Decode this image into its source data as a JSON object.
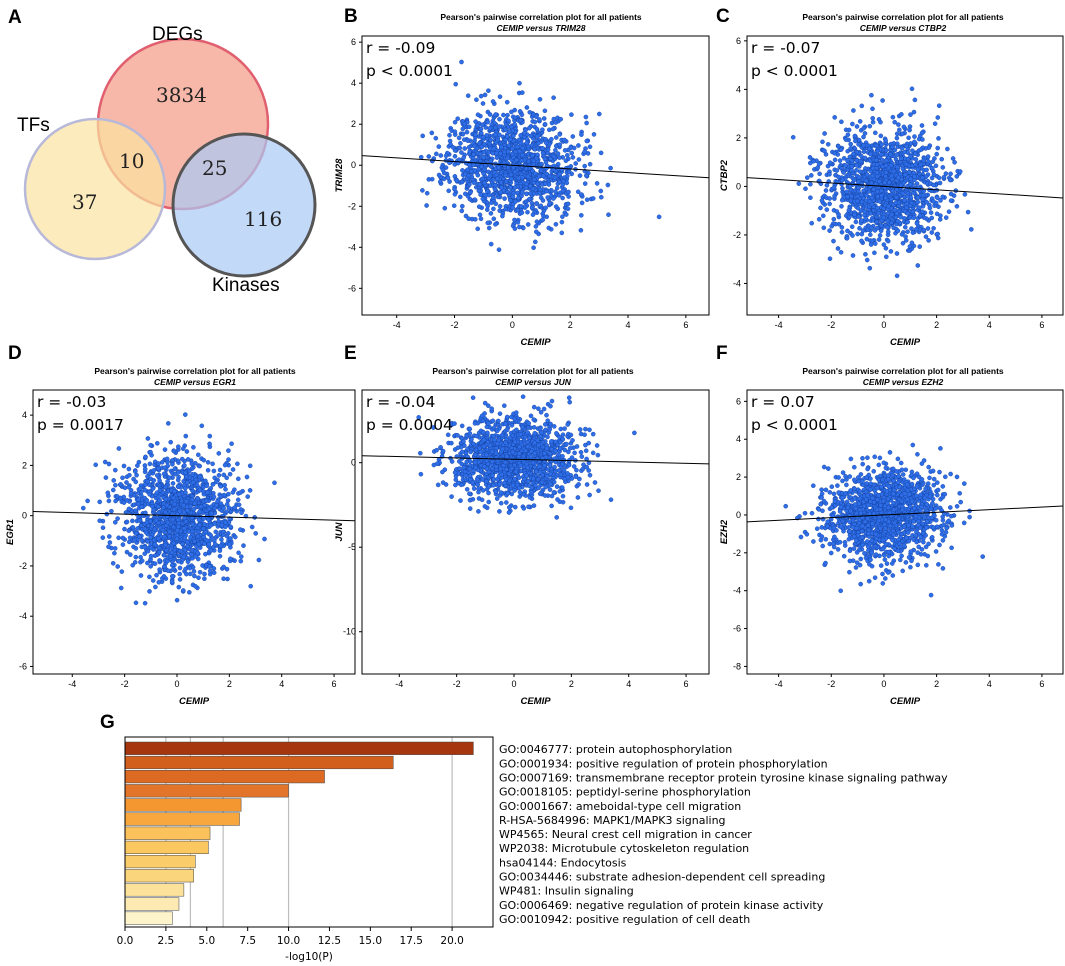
{
  "panel_labels": [
    "A",
    "B",
    "C",
    "D",
    "E",
    "F",
    "G"
  ],
  "venn": {
    "sets": [
      {
        "name": "DEGs",
        "color": "#f4a08c",
        "edge": "#e06070"
      },
      {
        "name": "TFs",
        "color": "#fbe3a0",
        "edge": "#b8b8d8"
      },
      {
        "name": "Kinases",
        "color": "#a9c9f5",
        "edge": "#555555"
      }
    ],
    "regions": [
      {
        "label": "DEGs only",
        "value": "3834"
      },
      {
        "label": "TFs & DEGs",
        "value": "10"
      },
      {
        "label": "DEGs & Kinases",
        "value": "25"
      },
      {
        "label": "TFs only",
        "value": "37"
      },
      {
        "label": "Kinases only",
        "value": "116"
      }
    ]
  },
  "chart_data": [
    {
      "type": "scatter",
      "panel": "B",
      "title": "Pearson's pairwise correlation plot for all patients",
      "subtitle": "CEMIP versus TRIM28",
      "xlabel": "CEMIP",
      "ylabel": "TRIM28",
      "stat_r": "r = -0.09",
      "stat_p": "p < 0.0001",
      "xlim": [
        -5.2,
        6.8
      ],
      "ylim": [
        -7.3,
        6.3
      ],
      "xticks": [
        -4,
        -2,
        0,
        2,
        4,
        6
      ],
      "yticks": [
        -6,
        -4,
        -2,
        0,
        2,
        4,
        6
      ],
      "slope": -0.09,
      "intercept": 0.0,
      "cloud_sx": 1.1,
      "cloud_sy": 1.3,
      "seed": 11
    },
    {
      "type": "scatter",
      "panel": "C",
      "title": "Pearson's pairwise correlation plot for all patients",
      "subtitle": "CEMIP versus CTBP2",
      "xlabel": "CEMIP",
      "ylabel": "CTBP2",
      "stat_r": "r = -0.07",
      "stat_p": "p < 0.0001",
      "xlim": [
        -5.2,
        6.8
      ],
      "ylim": [
        -5.3,
        6.2
      ],
      "xticks": [
        -4,
        -2,
        0,
        2,
        4,
        6
      ],
      "yticks": [
        -4,
        -2,
        0,
        2,
        4,
        6
      ],
      "slope": -0.07,
      "intercept": 0.0,
      "cloud_sx": 1.1,
      "cloud_sy": 1.15,
      "seed": 23
    },
    {
      "type": "scatter",
      "panel": "D",
      "title": "Pearson's pairwise correlation plot for all patients",
      "subtitle": "CEMIP versus EGR1",
      "xlabel": "CEMIP",
      "ylabel": "EGR1",
      "stat_r": "r = -0.03",
      "stat_p": "p = 0.0017",
      "xlim": [
        -5.5,
        6.8
      ],
      "ylim": [
        -6.3,
        5.0
      ],
      "xticks": [
        -4,
        -2,
        0,
        2,
        4,
        6
      ],
      "yticks": [
        -6,
        -4,
        -2,
        0,
        2,
        4
      ],
      "slope": -0.03,
      "intercept": 0.0,
      "cloud_sx": 1.1,
      "cloud_sy": 1.2,
      "seed": 37
    },
    {
      "type": "scatter",
      "panel": "E",
      "title": "Pearson's pairwise correlation plot for all patients",
      "subtitle": "CEMIP versus JUN",
      "xlabel": "CEMIP",
      "ylabel": "JUN",
      "stat_r": "r = -0.04",
      "stat_p": "p = 0.0004",
      "xlim": [
        -5.3,
        6.8
      ],
      "ylim": [
        -12.5,
        4.3
      ],
      "xticks": [
        -4,
        -2,
        0,
        2,
        4,
        6
      ],
      "yticks": [
        -10,
        -5,
        0
      ],
      "slope": -0.04,
      "intercept": 0.2,
      "cloud_sx": 1.1,
      "cloud_sy": 1.2,
      "seed": 51
    },
    {
      "type": "scatter",
      "panel": "F",
      "title": "Pearson's pairwise correlation plot for all patients",
      "subtitle": "CEMIP versus EZH2",
      "xlabel": "CEMIP",
      "ylabel": "EZH2",
      "stat_r": "r = 0.07",
      "stat_p": "p < 0.0001",
      "xlim": [
        -5.2,
        6.8
      ],
      "ylim": [
        -8.4,
        6.6
      ],
      "xticks": [
        -4,
        -2,
        0,
        2,
        4,
        6
      ],
      "yticks": [
        -8,
        -6,
        -4,
        -2,
        0,
        2,
        4,
        6
      ],
      "slope": 0.07,
      "intercept": 0.0,
      "cloud_sx": 1.1,
      "cloud_sy": 1.15,
      "seed": 67
    },
    {
      "type": "bar",
      "panel": "G",
      "orientation": "horizontal",
      "xlabel": "-log10(P)",
      "xlim": [
        0,
        22.5
      ],
      "xticks": [
        0.0,
        2.5,
        5.0,
        7.5,
        10.0,
        12.5,
        15.0,
        17.5,
        20.0
      ],
      "xtick_labels": [
        "0.0",
        "2.5",
        "5.0",
        "7.5",
        "10.0",
        "12.5",
        "15.0",
        "17.5",
        "20.0"
      ],
      "gridlines": [
        2.5,
        4,
        6,
        10,
        20
      ],
      "categories": [
        "GO:0046777: protein autophosphorylation",
        "GO:0001934: positive regulation of protein phosphorylation",
        "GO:0007169: transmembrane receptor protein tyrosine kinase signaling pathway",
        "GO:0018105: peptidyl-serine phosphorylation",
        "GO:0001667: ameboidal-type cell migration",
        "R-HSA-5684996: MAPK1/MAPK3 signaling",
        "WP4565: Neural crest cell migration in cancer",
        "WP2038: Microtubule cytoskeleton regulation",
        "hsa04144: Endocytosis",
        "GO:0034446: substrate adhesion-dependent cell spreading",
        "WP481: Insulin signaling",
        "GO:0006469: negative regulation of protein kinase activity",
        "GO:0010942: positive regulation of cell death"
      ],
      "values": [
        21.3,
        16.4,
        12.2,
        10.0,
        7.1,
        7.0,
        5.2,
        5.1,
        4.3,
        4.2,
        3.6,
        3.3,
        2.9
      ],
      "colors": [
        "#a5360d",
        "#d2601c",
        "#dc6a22",
        "#e3752a",
        "#f59731",
        "#f7a73d",
        "#fbc15a",
        "#fbc761",
        "#fbcd6a",
        "#fbd57b",
        "#fce29a",
        "#fdeab2",
        "#fef4cb"
      ]
    }
  ]
}
